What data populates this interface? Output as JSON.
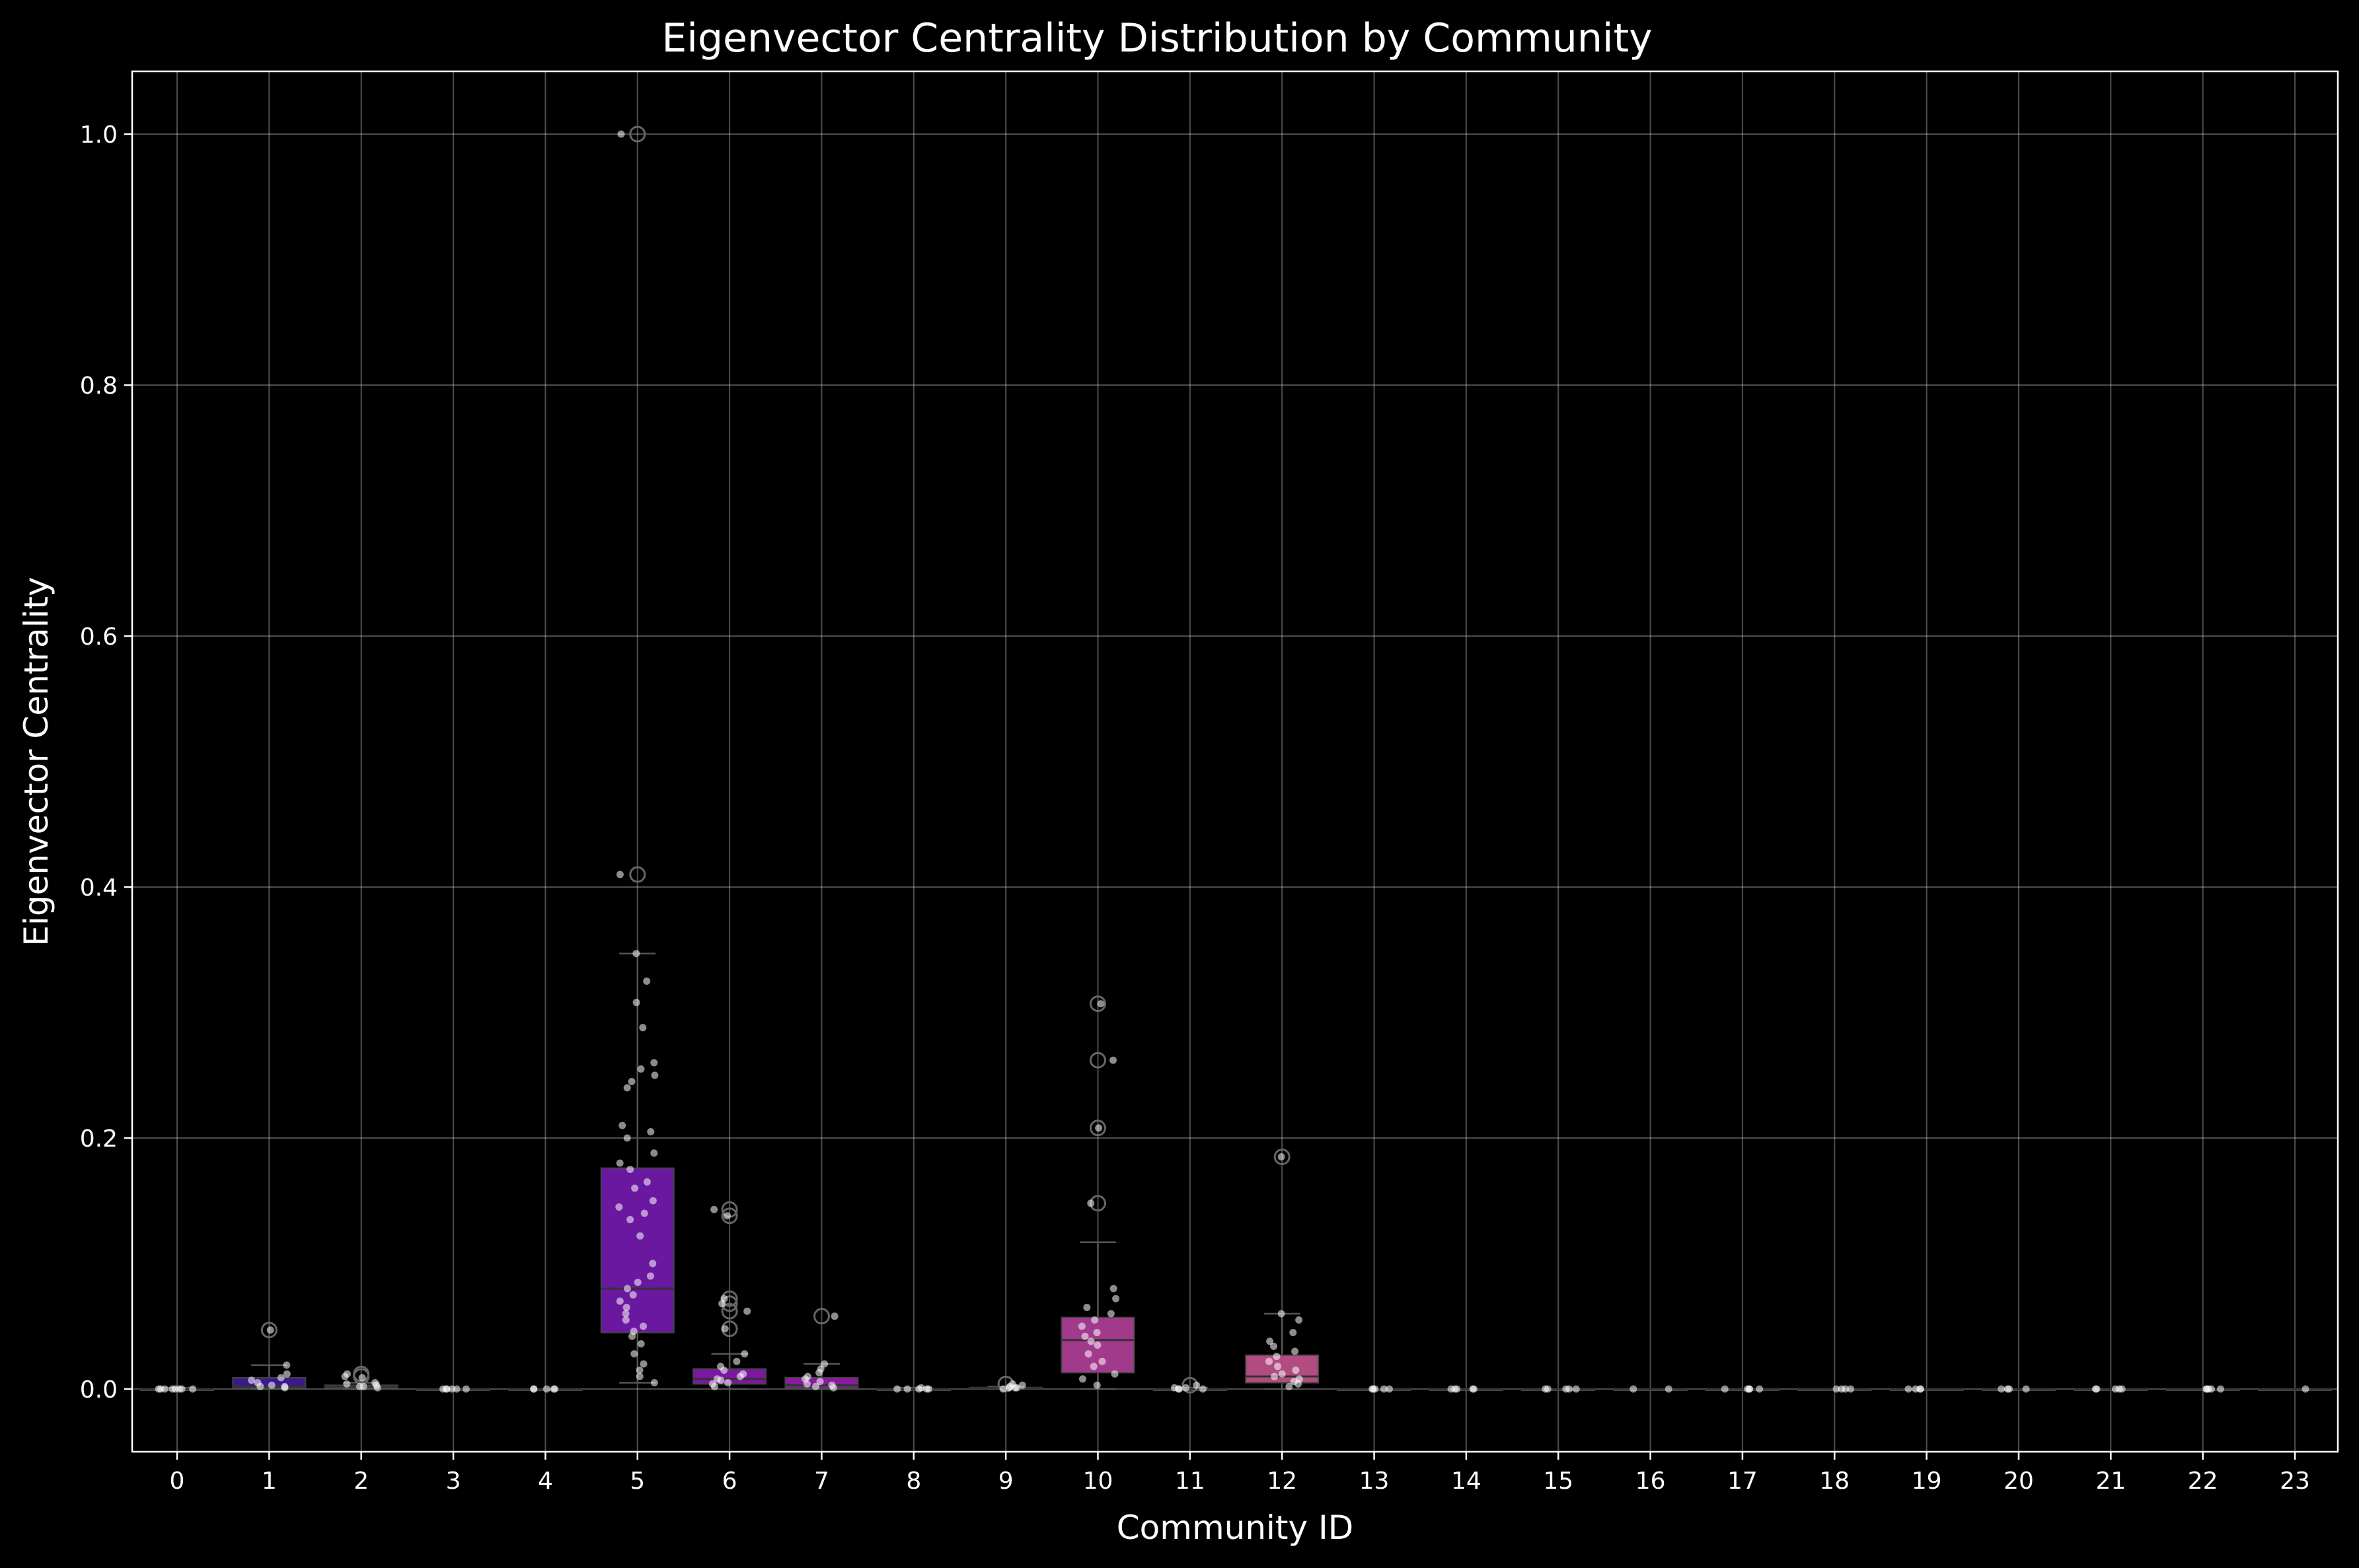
{
  "chart_data": {
    "type": "box",
    "title": "Eigenvector Centrality Distribution by Community",
    "xlabel": "Community ID",
    "ylabel": "Eigenvector Centrality",
    "ylim": [
      -0.05,
      1.05
    ],
    "yticks": [
      0.0,
      0.2,
      0.4,
      0.6,
      0.8,
      1.0
    ],
    "ytick_labels": [
      "0.0",
      "0.2",
      "0.4",
      "0.6",
      "0.8",
      "1.0"
    ],
    "grid": true,
    "categories": [
      "0",
      "1",
      "2",
      "3",
      "4",
      "5",
      "6",
      "7",
      "8",
      "9",
      "10",
      "11",
      "12",
      "13",
      "14",
      "15",
      "16",
      "17",
      "18",
      "19",
      "20",
      "21",
      "22",
      "23"
    ],
    "boxes": [
      {
        "community": "0",
        "whislo": 0.0,
        "q1": 0.0,
        "median": 0.0,
        "q3": 0.0,
        "whishi": 0.001,
        "color": "#1a0a4a",
        "fliers": [],
        "points": [
          0.0,
          0.0,
          0.0,
          0.0,
          0.0,
          0.0,
          0.0,
          0.0
        ]
      },
      {
        "community": "1",
        "whislo": 0.0,
        "q1": 0.001,
        "median": 0.002,
        "q3": 0.009,
        "whishi": 0.019,
        "color": "#3a1a8a",
        "fliers": [
          0.047
        ],
        "points": [
          0.001,
          0.002,
          0.002,
          0.003,
          0.005,
          0.007,
          0.009,
          0.012,
          0.019,
          0.047
        ]
      },
      {
        "community": "2",
        "whislo": 0.0,
        "q1": 0.001,
        "median": 0.002,
        "q3": 0.003,
        "whishi": 0.005,
        "color": "#3c1a8c",
        "fliers": [
          0.01,
          0.012
        ],
        "points": [
          0.001,
          0.002,
          0.002,
          0.003,
          0.004,
          0.005,
          0.009,
          0.01,
          0.012
        ]
      },
      {
        "community": "3",
        "whislo": 0.0,
        "q1": 0.0,
        "median": 0.0,
        "q3": 0.0,
        "whishi": 0.0,
        "color": "#46168f",
        "fliers": [],
        "points": [
          0.0,
          0.0,
          0.0,
          0.0,
          0.0,
          0.0
        ]
      },
      {
        "community": "4",
        "whislo": 0.0,
        "q1": 0.0,
        "median": 0.0,
        "q3": 0.0,
        "whishi": 0.0,
        "color": "#521593",
        "fliers": [],
        "points": [
          0.0,
          0.0,
          0.0,
          0.0,
          0.0
        ]
      },
      {
        "community": "5",
        "whislo": 0.005,
        "q1": 0.045,
        "median": 0.08,
        "q3": 0.176,
        "whishi": 0.347,
        "color": "#6a18a0",
        "fliers": [
          0.41,
          1.0
        ],
        "points": [
          0.005,
          0.01,
          0.015,
          0.02,
          0.028,
          0.036,
          0.042,
          0.046,
          0.05,
          0.055,
          0.06,
          0.065,
          0.07,
          0.075,
          0.08,
          0.085,
          0.09,
          0.1,
          0.122,
          0.135,
          0.14,
          0.145,
          0.15,
          0.16,
          0.165,
          0.175,
          0.18,
          0.188,
          0.2,
          0.205,
          0.21,
          0.24,
          0.245,
          0.25,
          0.255,
          0.26,
          0.288,
          0.308,
          0.325,
          0.347,
          0.41,
          1.0
        ]
      },
      {
        "community": "6",
        "whislo": 0.0,
        "q1": 0.004,
        "median": 0.008,
        "q3": 0.016,
        "whishi": 0.028,
        "color": "#7a18a0",
        "fliers": [
          0.048,
          0.062,
          0.068,
          0.072,
          0.138,
          0.143
        ],
        "points": [
          0.002,
          0.004,
          0.005,
          0.007,
          0.008,
          0.01,
          0.012,
          0.015,
          0.018,
          0.022,
          0.028,
          0.048,
          0.062,
          0.068,
          0.072,
          0.138,
          0.143
        ]
      },
      {
        "community": "7",
        "whislo": 0.0,
        "q1": 0.001,
        "median": 0.003,
        "q3": 0.009,
        "whishi": 0.02,
        "color": "#8a1aa0",
        "fliers": [
          0.058
        ],
        "points": [
          0.001,
          0.002,
          0.003,
          0.004,
          0.006,
          0.008,
          0.01,
          0.013,
          0.016,
          0.02,
          0.058
        ]
      },
      {
        "community": "8",
        "whislo": 0.0,
        "q1": 0.0,
        "median": 0.0,
        "q3": 0.0,
        "whishi": 0.001,
        "color": "#8c1c9c",
        "fliers": [],
        "points": [
          0.0,
          0.0,
          0.0,
          0.0,
          0.0,
          0.001
        ]
      },
      {
        "community": "9",
        "whislo": 0.0,
        "q1": 0.0,
        "median": 0.001,
        "q3": 0.001,
        "whishi": 0.002,
        "color": "#961e98",
        "fliers": [
          0.004
        ],
        "points": [
          0.0,
          0.001,
          0.001,
          0.001,
          0.002,
          0.003,
          0.004
        ]
      },
      {
        "community": "10",
        "whislo": 0.0,
        "q1": 0.013,
        "median": 0.039,
        "q3": 0.057,
        "whishi": 0.117,
        "color": "#a23a8c",
        "fliers": [
          0.148,
          0.208,
          0.262,
          0.307
        ],
        "points": [
          0.003,
          0.008,
          0.012,
          0.018,
          0.022,
          0.028,
          0.035,
          0.038,
          0.042,
          0.045,
          0.05,
          0.055,
          0.06,
          0.065,
          0.072,
          0.08,
          0.148,
          0.208,
          0.262,
          0.307
        ]
      },
      {
        "community": "11",
        "whislo": 0.0,
        "q1": 0.0,
        "median": 0.0,
        "q3": 0.0,
        "whishi": 0.001,
        "color": "#b03c88",
        "fliers": [
          0.003
        ],
        "points": [
          0.0,
          0.0,
          0.0,
          0.001,
          0.001,
          0.003
        ]
      },
      {
        "community": "12",
        "whislo": 0.0,
        "q1": 0.005,
        "median": 0.01,
        "q3": 0.027,
        "whishi": 0.06,
        "color": "#b04c80",
        "fliers": [
          0.185
        ],
        "points": [
          0.002,
          0.004,
          0.006,
          0.008,
          0.01,
          0.012,
          0.015,
          0.018,
          0.022,
          0.026,
          0.03,
          0.034,
          0.038,
          0.045,
          0.055,
          0.06,
          0.185
        ]
      },
      {
        "community": "13",
        "whislo": 0.0,
        "q1": 0.0,
        "median": 0.0,
        "q3": 0.0,
        "whishi": 0.0,
        "color": "#b84c7c",
        "fliers": [],
        "points": [
          0.0,
          0.0,
          0.0,
          0.0,
          0.0
        ]
      },
      {
        "community": "14",
        "whislo": 0.0,
        "q1": 0.0,
        "median": 0.0,
        "q3": 0.0,
        "whishi": 0.0,
        "color": "#bc5078",
        "fliers": [],
        "points": [
          0.0,
          0.0,
          0.0,
          0.0,
          0.0
        ]
      },
      {
        "community": "15",
        "whislo": 0.0,
        "q1": 0.0,
        "median": 0.0,
        "q3": 0.0,
        "whishi": 0.0,
        "color": "#c05474",
        "fliers": [],
        "points": [
          0.0,
          0.0,
          0.0,
          0.0,
          0.0
        ]
      },
      {
        "community": "16",
        "whislo": 0.0,
        "q1": 0.0,
        "median": 0.0,
        "q3": 0.0,
        "whishi": 0.0,
        "color": "#c45870",
        "fliers": [],
        "points": [
          0.0,
          0.0
        ]
      },
      {
        "community": "17",
        "whislo": 0.0,
        "q1": 0.0,
        "median": 0.0,
        "q3": 0.0,
        "whishi": 0.0,
        "color": "#c85c6c",
        "fliers": [],
        "points": [
          0.0,
          0.0,
          0.0,
          0.0,
          0.0
        ]
      },
      {
        "community": "18",
        "whislo": 0.0,
        "q1": 0.0,
        "median": 0.0,
        "q3": 0.0,
        "whishi": 0.0,
        "color": "#cc6068",
        "fliers": [],
        "points": [
          0.0,
          0.0,
          0.0,
          0.0
        ]
      },
      {
        "community": "19",
        "whislo": 0.0,
        "q1": 0.0,
        "median": 0.0,
        "q3": 0.0,
        "whishi": 0.0,
        "color": "#d06464",
        "fliers": [],
        "points": [
          0.0,
          0.0,
          0.0,
          0.0
        ]
      },
      {
        "community": "20",
        "whislo": 0.0,
        "q1": 0.0,
        "median": 0.0,
        "q3": 0.0,
        "whishi": 0.0,
        "color": "#d46860",
        "fliers": [],
        "points": [
          0.0,
          0.0,
          0.0,
          0.0
        ]
      },
      {
        "community": "21",
        "whislo": 0.0,
        "q1": 0.0,
        "median": 0.0,
        "q3": 0.0,
        "whishi": 0.0,
        "color": "#d86c5c",
        "fliers": [],
        "points": [
          0.0,
          0.0,
          0.0,
          0.0,
          0.0
        ]
      },
      {
        "community": "22",
        "whislo": 0.0,
        "q1": 0.0,
        "median": 0.0,
        "q3": 0.0,
        "whishi": 0.0,
        "color": "#dc7058",
        "fliers": [],
        "points": [
          0.0,
          0.0,
          0.0,
          0.0,
          0.0
        ]
      },
      {
        "community": "23",
        "whislo": 0.0,
        "q1": 0.0,
        "median": 0.0,
        "q3": 0.0,
        "whishi": 0.0,
        "color": "#e07454",
        "fliers": [],
        "points": [
          0.0
        ]
      }
    ],
    "colors": {
      "background": "#000000",
      "text": "#ffffff",
      "grid": "#ffffff",
      "strip_points": "#ffffff"
    }
  }
}
